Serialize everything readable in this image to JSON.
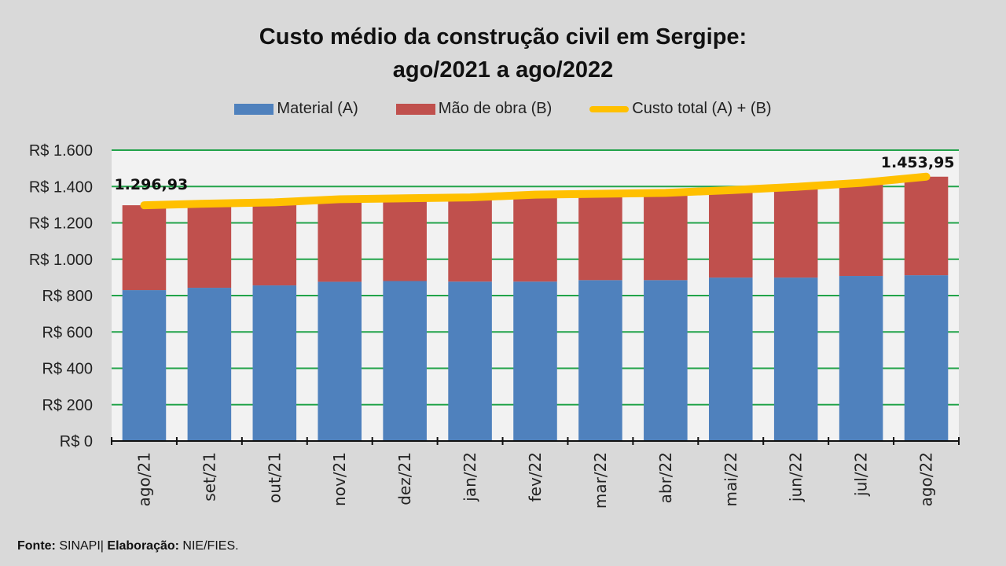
{
  "title_line1": "Custo médio da construção civil em Sergipe:",
  "title_line2": "ago/2021 a ago/2022",
  "legend": [
    {
      "label": "Material (A)",
      "color": "#4f81bd"
    },
    {
      "label": "Mão de obra (B)",
      "color": "#c0504d"
    },
    {
      "label": "Custo total (A) + (B)",
      "color": "#ffc000"
    }
  ],
  "footer": {
    "fonte_label": "Fonte:",
    "fonte_value": " SINAPI| ",
    "elab_label": "Elaboração:",
    "elab_value": " NIE/FIES."
  },
  "chart_data": {
    "type": "bar",
    "stacked": true,
    "title": "Custo médio da construção civil em Sergipe: ago/2021 a ago/2022",
    "xlabel": "",
    "ylabel": "",
    "ylim": [
      0,
      1600
    ],
    "yticks": [
      0,
      200,
      400,
      600,
      800,
      1000,
      1200,
      1400,
      1600
    ],
    "ytick_labels": [
      "R$ 0",
      "R$ 200",
      "R$ 400",
      "R$ 600",
      "R$ 800",
      "R$ 1.000",
      "R$ 1.200",
      "R$ 1.400",
      "R$ 1.600"
    ],
    "grid": true,
    "legend_position": "top",
    "categories": [
      "ago/21",
      "set/21",
      "out/21",
      "nov/21",
      "dez/21",
      "jan/22",
      "fev/22",
      "mar/22",
      "abr/22",
      "mai/22",
      "jun/22",
      "jul/22",
      "ago/22"
    ],
    "series": [
      {
        "name": "Material (A)",
        "type": "bar",
        "color": "#4f81bd",
        "values": [
          830,
          843,
          856,
          876,
          880,
          877,
          877,
          885,
          885,
          899,
          899,
          908,
          912
        ]
      },
      {
        "name": "Mão de obra (B)",
        "type": "bar",
        "color": "#c0504d",
        "values": [
          466.93,
          463,
          457,
          454,
          455,
          463,
          478,
          475,
          480,
          481,
          499,
          512,
          541.95
        ]
      },
      {
        "name": "Custo total (A) + (B)",
        "type": "line",
        "color": "#ffc000",
        "values": [
          1296.93,
          1306,
          1313,
          1330,
          1335,
          1340,
          1355,
          1360,
          1365,
          1380,
          1398,
          1420,
          1453.95
        ]
      }
    ],
    "annotations": [
      {
        "category": "ago/21",
        "text": "1.296,93"
      },
      {
        "category": "ago/22",
        "text": "1.453,95"
      }
    ]
  }
}
